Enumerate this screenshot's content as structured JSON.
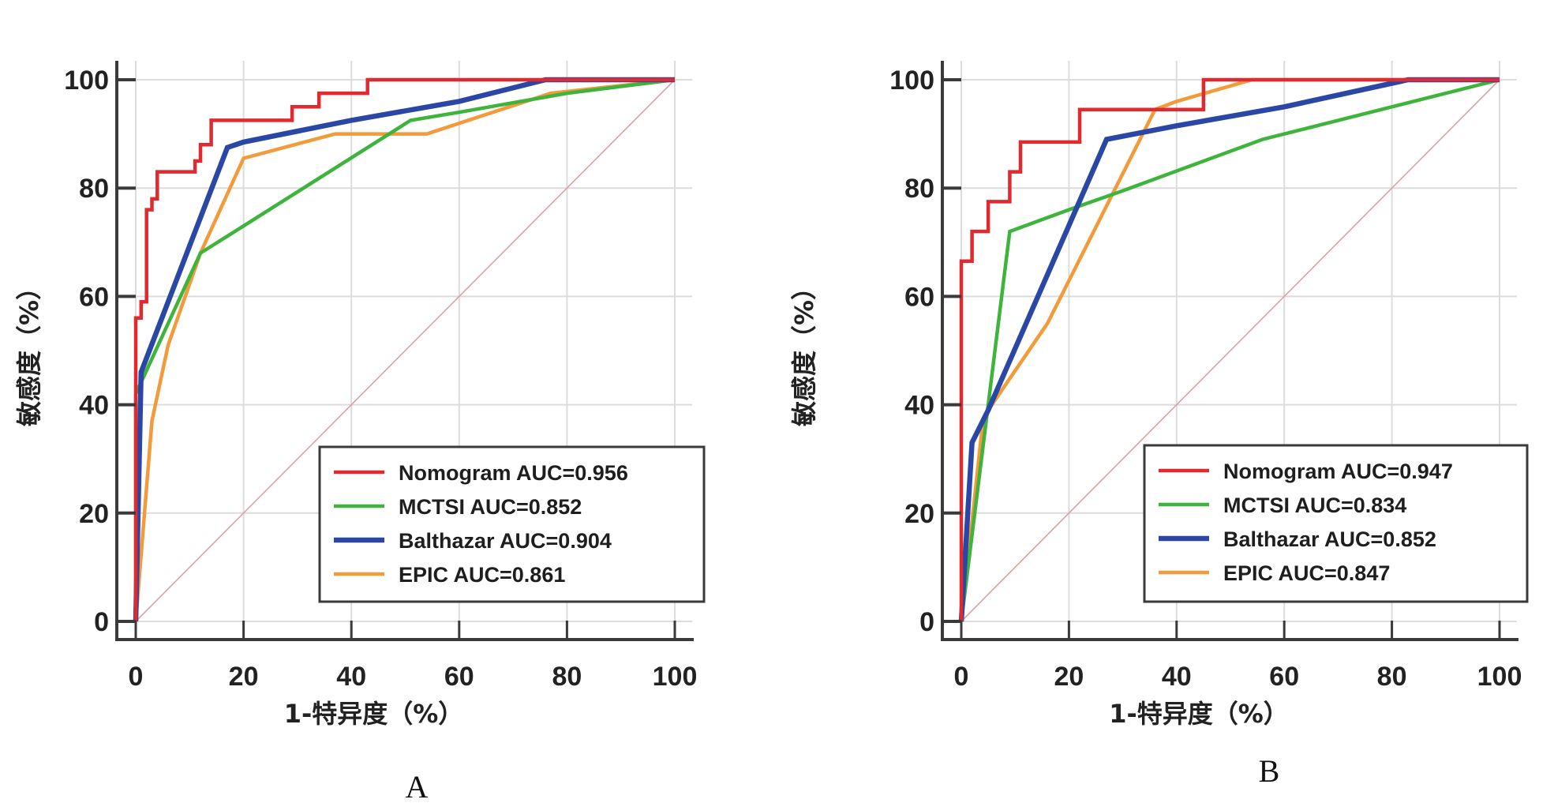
{
  "chart_data": [
    {
      "type": "line",
      "panel_label": "A",
      "title": "",
      "xlabel": "1-特异度（%）",
      "ylabel": "敏感度（%）",
      "xlim": [
        0,
        100
      ],
      "ylim": [
        0,
        100
      ],
      "xticks": [
        0,
        20,
        40,
        60,
        80,
        100
      ],
      "yticks": [
        0,
        20,
        40,
        60,
        80,
        100
      ],
      "grid": true,
      "legend_position": "bottom-right",
      "reference_line": {
        "name": "chance",
        "x": [
          0,
          100
        ],
        "y": [
          0,
          100
        ],
        "color": "#d9a3a3"
      },
      "series": [
        {
          "name": "Nomogram",
          "legend": "Nomogram AUC=0.956",
          "auc": 0.956,
          "color": "#e02a2f",
          "x": [
            0,
            0,
            0,
            1,
            1,
            2,
            2,
            3,
            3,
            4,
            4,
            11,
            11,
            12,
            12,
            14,
            14,
            29,
            29,
            34,
            34,
            43,
            43,
            100
          ],
          "y": [
            0,
            40,
            56,
            56,
            59,
            59,
            76,
            76,
            78,
            78,
            83,
            83,
            85,
            85,
            88,
            88,
            92.5,
            92.5,
            95,
            95,
            97.5,
            97.5,
            100,
            100
          ]
        },
        {
          "name": "MCTSI",
          "legend": "MCTSI AUC=0.852",
          "auc": 0.852,
          "color": "#3fb43c",
          "x": [
            0,
            0,
            12,
            20,
            51,
            60,
            80,
            100
          ],
          "y": [
            0,
            42,
            68,
            73,
            92.5,
            94,
            97.5,
            100
          ]
        },
        {
          "name": "Balthazar",
          "legend": "Balthazar AUC=0.904",
          "auc": 0.904,
          "color": "#2a47a6",
          "x": [
            0,
            1,
            17,
            20,
            40,
            60,
            76,
            100
          ],
          "y": [
            0,
            46,
            87.5,
            88.5,
            92.5,
            96,
            100,
            100
          ]
        },
        {
          "name": "EPIC",
          "legend": "EPIC AUC=0.861",
          "auc": 0.861,
          "color": "#f39a3a",
          "x": [
            0,
            3,
            6,
            12,
            20,
            37,
            54,
            77,
            100
          ],
          "y": [
            0,
            37,
            51,
            68,
            85.5,
            90,
            90,
            97.5,
            100
          ]
        }
      ]
    },
    {
      "type": "line",
      "panel_label": "B",
      "title": "",
      "xlabel": "1-特异度（%）",
      "ylabel": "敏感度（%）",
      "xlim": [
        0,
        100
      ],
      "ylim": [
        0,
        100
      ],
      "xticks": [
        0,
        20,
        40,
        60,
        80,
        100
      ],
      "yticks": [
        0,
        20,
        40,
        60,
        80,
        100
      ],
      "grid": true,
      "legend_position": "bottom-right",
      "reference_line": {
        "name": "chance",
        "x": [
          0,
          100
        ],
        "y": [
          0,
          100
        ],
        "color": "#d9a3a3"
      },
      "series": [
        {
          "name": "Nomogram",
          "legend": "Nomogram AUC=0.947",
          "auc": 0.947,
          "color": "#e02a2f",
          "x": [
            0,
            0,
            0,
            2,
            2,
            5,
            5,
            9,
            9,
            11,
            11,
            22,
            22,
            45,
            45,
            100
          ],
          "y": [
            0,
            12,
            66.5,
            66.5,
            72,
            72,
            77.5,
            77.5,
            83,
            83,
            88.5,
            88.5,
            94.5,
            94.5,
            100,
            100
          ]
        },
        {
          "name": "MCTSI",
          "legend": "MCTSI AUC=0.834",
          "auc": 0.834,
          "color": "#3fb43c",
          "x": [
            0,
            9,
            20,
            30,
            56,
            80,
            100
          ],
          "y": [
            0,
            72,
            76,
            79.5,
            89,
            95,
            100
          ]
        },
        {
          "name": "Balthazar",
          "legend": "Balthazar AUC=0.852",
          "auc": 0.852,
          "color": "#2a47a6",
          "x": [
            0,
            2,
            5,
            27,
            40,
            60,
            83,
            100
          ],
          "y": [
            0,
            33,
            39,
            89,
            91.5,
            95,
            100,
            100
          ]
        },
        {
          "name": "EPIC",
          "legend": "EPIC AUC=0.847",
          "auc": 0.847,
          "color": "#f39a3a",
          "x": [
            0,
            4,
            5,
            16,
            36,
            40,
            54,
            100
          ],
          "y": [
            0,
            37,
            39,
            55,
            94.5,
            96,
            100,
            100
          ]
        }
      ]
    }
  ]
}
